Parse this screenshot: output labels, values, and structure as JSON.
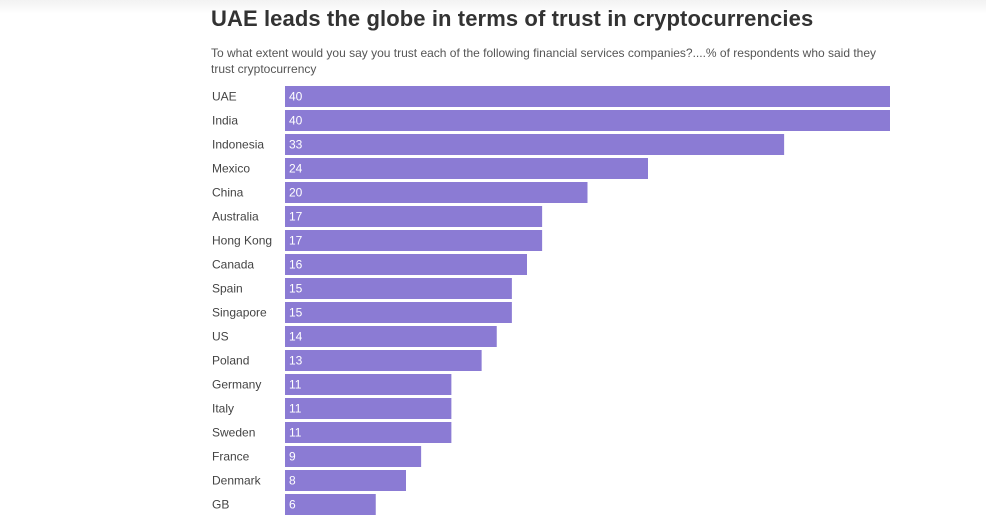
{
  "title": "UAE leads the globe in terms of trust in cryptocurrencies",
  "subtitle": "To what extent would you say you trust each of the following financial services companies?....% of respondents who said they trust cryptocurrency",
  "colors": {
    "bar": "#8b7bd4",
    "value_label": "#ffffff",
    "category_label": "#444444"
  },
  "chart_data": {
    "type": "bar",
    "orientation": "horizontal",
    "title": "UAE leads the globe in terms of trust in cryptocurrencies",
    "subtitle": "To what extent would you say you trust each of the following financial services companies?....% of respondents who said they trust cryptocurrency",
    "xlabel": "",
    "ylabel": "",
    "xlim": [
      0,
      40
    ],
    "grid": false,
    "legend": "none",
    "categories": [
      "UAE",
      "India",
      "Indonesia",
      "Mexico",
      "China",
      "Australia",
      "Hong Kong",
      "Canada",
      "Spain",
      "Singapore",
      "US",
      "Poland",
      "Germany",
      "Italy",
      "Sweden",
      "France",
      "Denmark",
      "GB"
    ],
    "values": [
      40,
      40,
      33,
      24,
      20,
      17,
      17,
      16,
      15,
      15,
      14,
      13,
      11,
      11,
      11,
      9,
      8,
      6
    ]
  }
}
